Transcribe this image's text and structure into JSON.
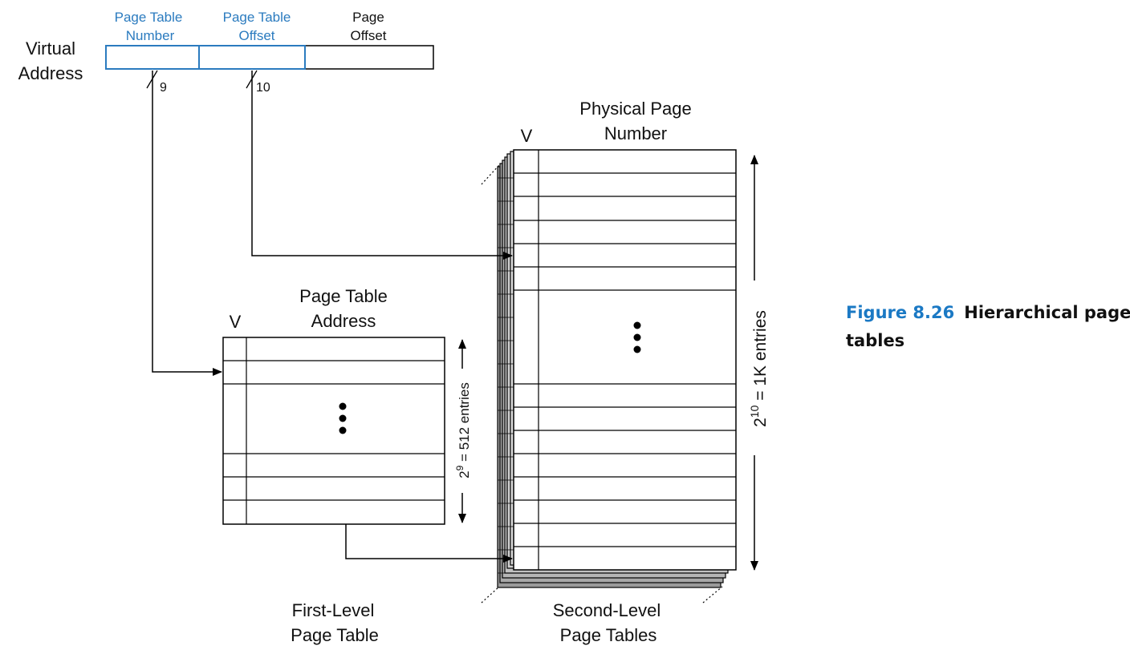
{
  "virtual_address": {
    "label_line1": "Virtual",
    "label_line2": "Address",
    "fields": [
      {
        "line1": "Page Table",
        "line2": "Number",
        "bits": "9"
      },
      {
        "line1": "Page Table",
        "line2": "Offset",
        "bits": "10"
      },
      {
        "line1": "Page",
        "line2": "Offset"
      }
    ]
  },
  "first_level": {
    "v_label": "V",
    "header_line1": "Page Table",
    "header_line2": "Address",
    "size_base": "2",
    "size_exp": "9",
    "size_rest": " = 512 entries",
    "title_line1": "First-Level",
    "title_line2": "Page Table"
  },
  "second_level": {
    "v_label": "V",
    "header_line1": "Physical Page",
    "header_line2": "Number",
    "size_base": "2",
    "size_exp": "10",
    "size_rest": " = 1K entries",
    "title_line1": "Second-Level",
    "title_line2": "Page Tables"
  },
  "caption": {
    "number": "Figure 8.26",
    "text_line1": "Hierarchical page",
    "text_line2": "tables"
  },
  "colors": {
    "accent_blue": "#2b7bbf",
    "caption_blue": "#1b79c4",
    "stack_gray": "#8a8a8a"
  }
}
